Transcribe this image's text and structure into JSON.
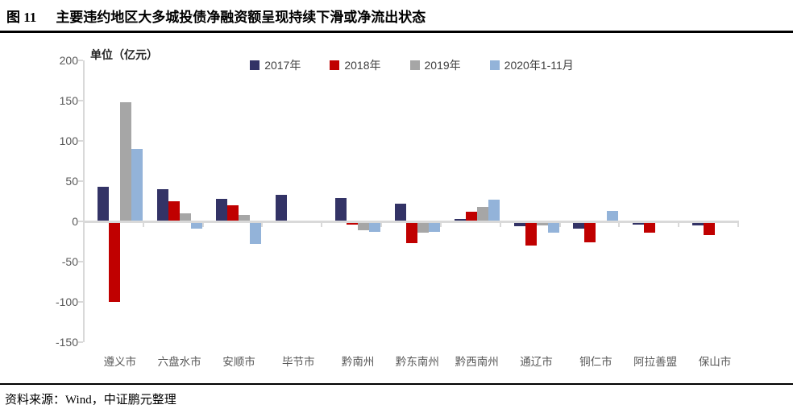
{
  "header": {
    "fig_label": "图 11",
    "title": "主要违约地区大多城投债净融资额呈现持续下滑或净流出状态"
  },
  "footer": {
    "source_label": "资料来源：Wind，中证鹏元整理"
  },
  "chart_data": {
    "type": "bar",
    "unit_label": "单位（亿元）",
    "categories": [
      "遵义市",
      "六盘水市",
      "安顺市",
      "毕节市",
      "黔南州",
      "黔东南州",
      "黔西南州",
      "通辽市",
      "铜仁市",
      "阿拉善盟",
      "保山市"
    ],
    "series": [
      {
        "name": "2017年",
        "color": "#333366",
        "values": [
          43,
          40,
          28,
          33,
          29,
          22,
          3,
          -6,
          -9,
          -4,
          -5
        ]
      },
      {
        "name": "2018年",
        "color": "#C00000",
        "values": [
          -100,
          25,
          20,
          0,
          -4,
          -27,
          12,
          -30,
          -26,
          -14,
          -17
        ]
      },
      {
        "name": "2019年",
        "color": "#A6A6A6",
        "values": [
          148,
          10,
          8,
          1,
          -11,
          -14,
          18,
          -5,
          0,
          0,
          0
        ]
      },
      {
        "name": "2020年1-11月",
        "color": "#93B3D9",
        "values": [
          90,
          -9,
          -28,
          -2,
          -13,
          -13,
          27,
          -14,
          13,
          0,
          0
        ]
      }
    ],
    "ylim": [
      -150,
      200
    ],
    "ytick_step": 50,
    "grid": false,
    "legend_position": "top",
    "axis_color": "#D9D9D9",
    "tick_label_color": "#595959"
  }
}
